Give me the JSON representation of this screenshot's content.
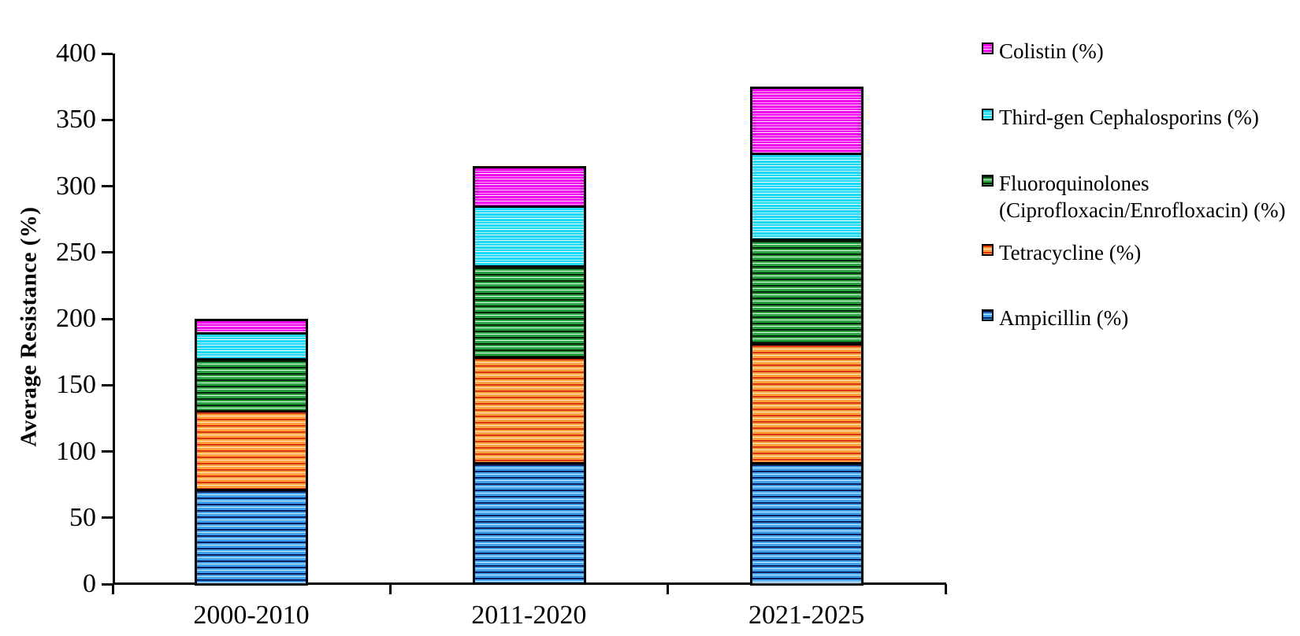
{
  "chart_data": {
    "type": "bar",
    "stacked": true,
    "title": "",
    "xlabel": "",
    "ylabel": "Average Resistance (%)",
    "ylim": [
      0,
      400
    ],
    "yticks": [
      0,
      50,
      100,
      150,
      200,
      250,
      300,
      350,
      400
    ],
    "grid": false,
    "legend_position": "right",
    "categories": [
      "2000-2010",
      "2011-2020",
      "2021-2025"
    ],
    "series": [
      {
        "name": "Ampicillin (%)",
        "values": [
          70,
          90,
          90
        ],
        "base_color": "#3f9ff0",
        "stripe_stops": [
          [
            "#0c1f5e",
            2
          ],
          [
            "#3f9ff0",
            2
          ],
          [
            "#cdeeff",
            1
          ],
          [
            "#3f9ff0",
            3
          ]
        ]
      },
      {
        "name": "Tetracycline (%)",
        "values": [
          60,
          80,
          90
        ],
        "base_color": "#ffa041",
        "stripe_stops": [
          [
            "#d8350f",
            2
          ],
          [
            "#ffa041",
            2
          ],
          [
            "#fdeecb",
            1
          ],
          [
            "#ffa041",
            3
          ]
        ]
      },
      {
        "name": "Fluoroquinolones (Ciprofloxacin/Enrofloxacin) (%)",
        "values": [
          40,
          70,
          80
        ],
        "base_color": "#28a33e",
        "stripe_stops": [
          [
            "#08230c",
            2
          ],
          [
            "#28a33e",
            2
          ],
          [
            "#eafaec",
            1
          ],
          [
            "#28a33e",
            3
          ]
        ]
      },
      {
        "name": "Third-gen Cephalosporins (%)",
        "values": [
          20,
          45,
          65
        ],
        "base_color": "#1ed7f2",
        "stripe_stops": [
          [
            "#1ed7f2",
            3
          ],
          [
            "#a8f4fd",
            1
          ],
          [
            "#1ed7f2",
            2
          ],
          [
            "#f2feff",
            1
          ]
        ]
      },
      {
        "name": "Colistin (%)",
        "values": [
          10,
          30,
          50
        ],
        "base_color": "#ee04ec",
        "stripe_stops": [
          [
            "#ee04ec",
            3
          ],
          [
            "#fa9df4",
            1
          ],
          [
            "#ee04ec",
            2
          ],
          [
            "#fdf0fd",
            1
          ]
        ]
      }
    ],
    "bar_totals": [
      200,
      315,
      375
    ],
    "legend": [
      {
        "series_index": 4,
        "label_lines": [
          "Colistin (%)"
        ]
      },
      {
        "series_index": 3,
        "label_lines": [
          "Third-gen Cephalosporins (%)"
        ]
      },
      {
        "series_index": 2,
        "label_lines": [
          "Fluoroquinolones",
          "(Ciprofloxacin/Enrofloxacin) (%)"
        ]
      },
      {
        "series_index": 1,
        "label_lines": [
          "Tetracycline (%)"
        ]
      },
      {
        "series_index": 0,
        "label_lines": [
          "Ampicillin (%)"
        ]
      }
    ],
    "colors": {
      "axis": "#000000",
      "text": "#000000",
      "background": "#ffffff",
      "bar_border": "#000000"
    }
  }
}
